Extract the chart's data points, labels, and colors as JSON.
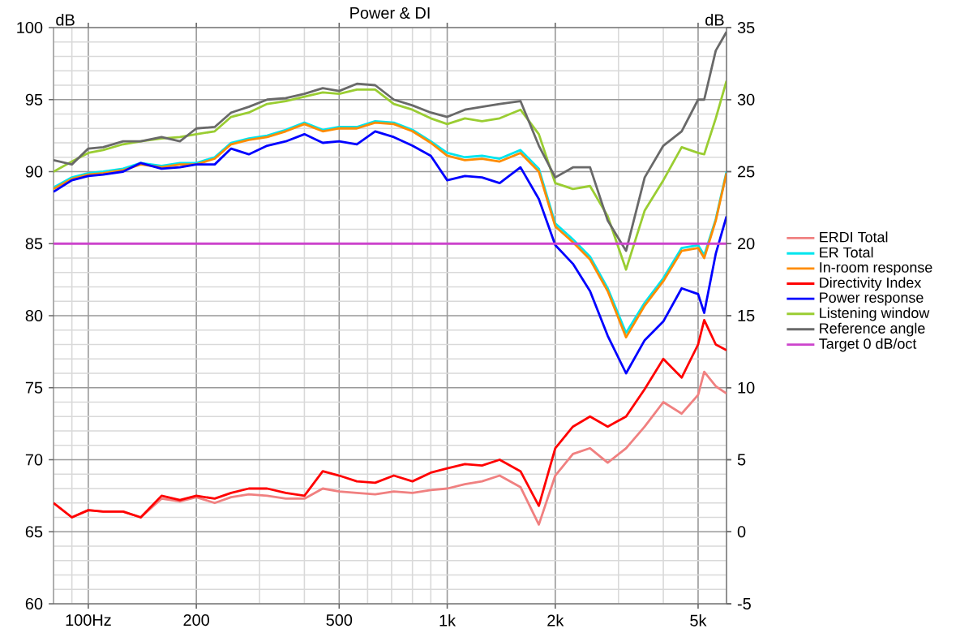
{
  "chart_data": {
    "type": "line",
    "title": "Power & DI",
    "ylabel": "dB",
    "y2label": "dB",
    "x": [
      80,
      90,
      100,
      110,
      125,
      140,
      160,
      180,
      200,
      225,
      250,
      280,
      315,
      355,
      400,
      450,
      500,
      560,
      630,
      710,
      800,
      900,
      1000,
      1120,
      1250,
      1400,
      1600,
      1800,
      2000,
      2240,
      2500,
      2800,
      3150,
      3550,
      4000,
      4500,
      5000,
      5200,
      5600,
      6000
    ],
    "series": [
      {
        "name": "ERDI Total",
        "color": "#f08080",
        "axis": "y2",
        "values": [
          2.0,
          1.0,
          1.5,
          1.4,
          1.4,
          1.0,
          2.3,
          2.1,
          2.4,
          2.0,
          2.4,
          2.6,
          2.5,
          2.3,
          2.3,
          3.0,
          2.8,
          2.7,
          2.6,
          2.8,
          2.7,
          2.9,
          3.0,
          3.3,
          3.5,
          3.9,
          3.1,
          0.5,
          3.9,
          5.4,
          5.8,
          4.8,
          5.8,
          7.3,
          9.0,
          8.2,
          9.5,
          11.1,
          10.1,
          9.6
        ]
      },
      {
        "name": "ER Total",
        "color": "#00e5ee",
        "values": [
          88.9,
          89.6,
          89.9,
          90.0,
          90.2,
          90.6,
          90.4,
          90.6,
          90.6,
          91.0,
          92.0,
          92.3,
          92.5,
          92.9,
          93.4,
          92.9,
          93.1,
          93.1,
          93.5,
          93.4,
          92.9,
          92.1,
          91.3,
          91.0,
          91.1,
          90.9,
          91.5,
          90.2,
          86.4,
          85.3,
          84.1,
          81.9,
          78.8,
          80.9,
          82.6,
          84.7,
          84.9,
          84.2,
          86.7,
          90.0
        ]
      },
      {
        "name": "In-room response",
        "color": "#ff8c00",
        "values": [
          88.8,
          89.5,
          89.8,
          89.9,
          90.1,
          90.5,
          90.3,
          90.5,
          90.5,
          90.9,
          91.9,
          92.2,
          92.4,
          92.8,
          93.3,
          92.8,
          93.0,
          93.0,
          93.4,
          93.3,
          92.8,
          92.0,
          91.1,
          90.8,
          90.9,
          90.7,
          91.3,
          90.0,
          86.2,
          85.1,
          83.9,
          81.7,
          78.5,
          80.7,
          82.4,
          84.5,
          84.7,
          84.0,
          86.6,
          89.9
        ]
      },
      {
        "name": "Directivity Index",
        "color": "#ff0000",
        "axis": "y2",
        "values": [
          2.0,
          1.0,
          1.5,
          1.4,
          1.4,
          1.0,
          2.5,
          2.2,
          2.5,
          2.3,
          2.7,
          3.0,
          3.0,
          2.7,
          2.5,
          4.2,
          3.9,
          3.5,
          3.4,
          3.9,
          3.5,
          4.1,
          4.4,
          4.7,
          4.6,
          5.0,
          4.2,
          1.8,
          5.8,
          7.3,
          8.0,
          7.3,
          8.0,
          9.9,
          12.0,
          10.7,
          13.0,
          14.7,
          13.0,
          12.6
        ]
      },
      {
        "name": "Power response",
        "color": "#0000ff",
        "values": [
          88.6,
          89.4,
          89.7,
          89.8,
          90.0,
          90.6,
          90.2,
          90.3,
          90.5,
          90.5,
          91.6,
          91.2,
          91.8,
          92.1,
          92.6,
          92.0,
          92.1,
          91.9,
          92.8,
          92.4,
          91.8,
          91.1,
          89.4,
          89.7,
          89.6,
          89.2,
          90.3,
          88.1,
          84.9,
          83.6,
          81.7,
          78.6,
          76.0,
          78.3,
          79.6,
          81.9,
          81.5,
          80.2,
          84.3,
          86.9
        ]
      },
      {
        "name": "Listening window",
        "color": "#9acd32",
        "values": [
          90.0,
          90.7,
          91.3,
          91.5,
          91.9,
          92.1,
          92.3,
          92.4,
          92.6,
          92.8,
          93.8,
          94.1,
          94.7,
          94.9,
          95.2,
          95.5,
          95.4,
          95.7,
          95.7,
          94.7,
          94.3,
          93.7,
          93.3,
          93.7,
          93.5,
          93.7,
          94.3,
          92.6,
          89.2,
          88.8,
          89.0,
          86.9,
          83.2,
          87.3,
          89.4,
          91.7,
          91.3,
          91.2,
          93.7,
          96.3
        ]
      },
      {
        "name": "Reference angle",
        "color": "#696969",
        "values": [
          90.8,
          90.5,
          91.6,
          91.7,
          92.1,
          92.1,
          92.4,
          92.1,
          93.0,
          93.1,
          94.1,
          94.5,
          95.0,
          95.1,
          95.4,
          95.8,
          95.6,
          96.1,
          96.0,
          95.0,
          94.6,
          94.1,
          93.8,
          94.3,
          94.5,
          94.7,
          94.9,
          91.8,
          89.6,
          90.3,
          90.3,
          86.6,
          84.5,
          89.6,
          91.8,
          92.8,
          95.0,
          95.0,
          98.4,
          99.7
        ]
      },
      {
        "name": "Target 0 dB/oct",
        "color": "#cc44cc",
        "x": [
          80,
          6000
        ],
        "values": [
          85,
          85
        ]
      }
    ],
    "log": "x",
    "xlim": [
      80,
      6000
    ],
    "xticks": [
      {
        "value": 100,
        "label": "100Hz"
      },
      200,
      500,
      {
        "value": 1000,
        "label": "1k"
      },
      {
        "value": 2000,
        "label": "2k"
      },
      {
        "value": 5000,
        "label": "5k"
      }
    ],
    "ylim": [
      60,
      100
    ],
    "yticks": [
      60,
      65,
      70,
      75,
      80,
      85,
      90,
      95,
      100
    ],
    "y2lim": [
      -5,
      35
    ],
    "y2ticks": [
      -5,
      0,
      5,
      10,
      15,
      20,
      25,
      30,
      35
    ],
    "grid": true,
    "legend": "right",
    "line_style": "solid",
    "marker": "none"
  }
}
